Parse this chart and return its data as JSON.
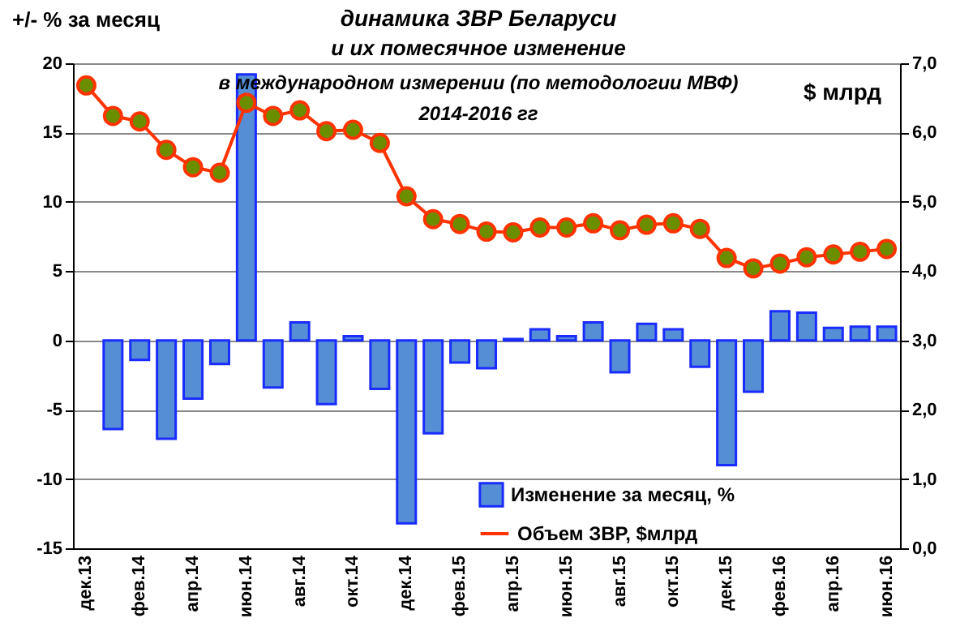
{
  "chart_data": {
    "type": "bar",
    "title": "динамика ЗВР Беларуси",
    "subtitle": "и их помесячное  изменение",
    "ylabel": "+/- % за месяц",
    "y2label": "$ млрд",
    "annotations": [
      "в международном измерении (по методологии МВФ)",
      "2014-2016 гг"
    ],
    "categories": [
      "дек.13",
      null,
      "фев.14",
      null,
      "апр.14",
      null,
      "июн.14",
      null,
      "авг.14",
      null,
      "окт.14",
      null,
      "дек.14",
      null,
      "фев.15",
      null,
      "апр.15",
      null,
      "июн.15",
      null,
      "авг.15",
      null,
      "окт.15",
      null,
      "дек.15",
      null,
      "фев.16",
      null,
      "апр.16",
      null,
      "июн.16"
    ],
    "series": [
      {
        "name": "Изменение за месяц, %",
        "color": "#558ed5",
        "values": [
          null,
          -6.4,
          -1.4,
          -7.1,
          -4.2,
          -1.7,
          19.2,
          -3.4,
          1.3,
          -4.6,
          0.3,
          -3.5,
          -13.2,
          -6.7,
          -1.6,
          -2.0,
          0.1,
          0.8,
          0.3,
          1.3,
          -2.3,
          1.2,
          0.8,
          -1.9,
          -9.0,
          -3.7,
          2.1,
          2.0,
          0.9,
          1.0,
          1.0
        ]
      },
      {
        "name": "Объем ЗВР, $млрд",
        "color": "#ff3300",
        "type": "line",
        "axis": "y2",
        "marker": "circle",
        "values": [
          6.68,
          6.24,
          6.16,
          5.75,
          5.5,
          5.42,
          6.43,
          6.24,
          6.32,
          6.02,
          6.04,
          5.85,
          5.08,
          4.75,
          4.68,
          4.57,
          4.56,
          4.63,
          4.63,
          4.69,
          4.59,
          4.67,
          4.69,
          4.61,
          4.19,
          4.04,
          4.11,
          4.2,
          4.24,
          4.28,
          4.32
        ]
      }
    ],
    "ylim": [
      -15,
      20
    ],
    "yticks": [
      -15,
      -10,
      -5,
      0,
      5,
      10,
      15,
      20
    ],
    "y2lim": [
      0,
      7
    ],
    "y2ticks": [
      {
        "value": 0,
        "label": "0,0"
      },
      {
        "value": 1,
        "label": "1,0"
      },
      {
        "value": 2,
        "label": "2,0"
      },
      {
        "value": 3,
        "label": "3,0"
      },
      {
        "value": 4,
        "label": "4,0"
      },
      {
        "value": 5,
        "label": "5,0"
      },
      {
        "value": 6,
        "label": "6,0"
      },
      {
        "value": 7,
        "label": "7,0"
      }
    ],
    "grid": "y",
    "legend": "bottom right"
  }
}
